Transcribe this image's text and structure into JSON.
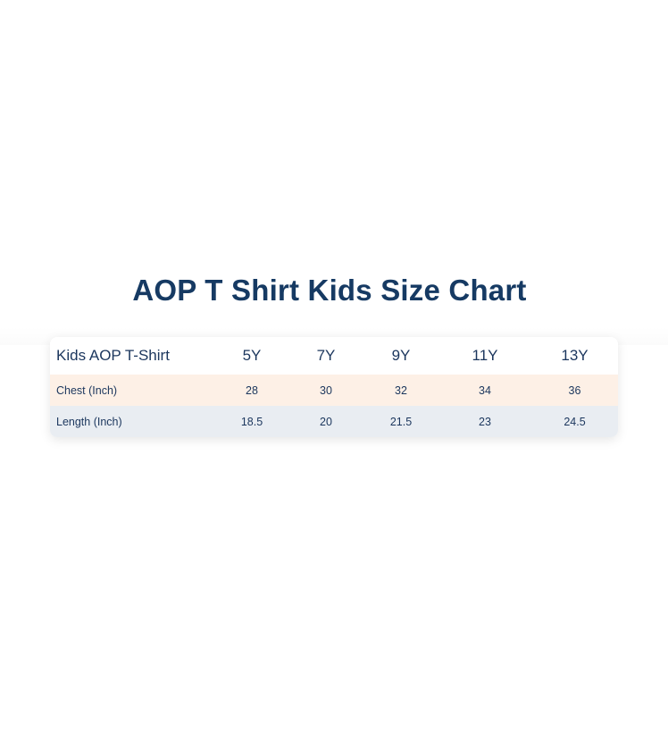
{
  "page": {
    "title": "AOP T Shirt Kids Size Chart"
  },
  "size_table": {
    "header_label": "Kids AOP T-Shirt",
    "sizes": [
      "5Y",
      "7Y",
      "9Y",
      "11Y",
      "13Y"
    ],
    "rows": [
      {
        "label": "Chest (Inch)",
        "values": [
          "28",
          "30",
          "32",
          "34",
          "36"
        ]
      },
      {
        "label": "Length (Inch)",
        "values": [
          "18.5",
          "20",
          "21.5",
          "23",
          "24.5"
        ]
      }
    ]
  },
  "colors": {
    "title": "#163a63",
    "text": "#1b365d",
    "chest_row_bg": "#fdf0e6",
    "length_row_bg": "#e9edf2"
  }
}
